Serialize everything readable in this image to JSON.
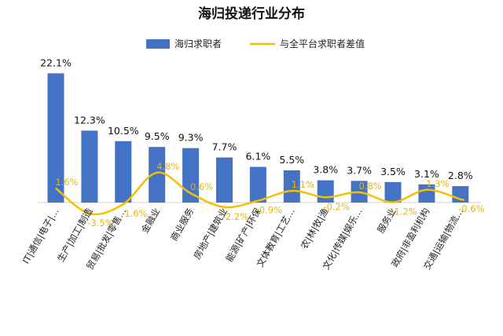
{
  "chart_data": {
    "type": "bar",
    "title": "海归投递行业分布",
    "categories": [
      "IT|通信|电子|…",
      "生产|加工|制造",
      "贸易|批发|零售…",
      "金融业",
      "商业服务",
      "房地产|建筑业",
      "能源|矿产|环保",
      "文体教育|工艺…",
      "农|林|牧|渔",
      "文化|传媒|娱乐…",
      "服务业",
      "政府|非盈利机构",
      "交通|运输|物流…"
    ],
    "series": [
      {
        "name": "海归求职者",
        "type": "bar",
        "values": [
          22.1,
          12.3,
          10.5,
          9.5,
          9.3,
          7.7,
          6.1,
          5.5,
          3.8,
          3.7,
          3.5,
          3.1,
          2.8
        ],
        "labels": [
          "22.1%",
          "12.3%",
          "10.5%",
          "9.5%",
          "9.3%",
          "7.7%",
          "6.1%",
          "5.5%",
          "3.8%",
          "3.7%",
          "3.5%",
          "3.1%",
          "2.8%"
        ],
        "color": "#4472c4"
      },
      {
        "name": "与全平台求职者差值",
        "type": "line",
        "values": [
          1.6,
          -3.5,
          -1.6,
          4.8,
          0.6,
          -2.2,
          -0.9,
          1.1,
          -0.2,
          0.8,
          -1.2,
          1.3,
          -0.6
        ],
        "labels": [
          "1.6%",
          "-3.5%",
          "-1.6%",
          "4.8%",
          "0.6%",
          "-2.2%",
          "-0.9%",
          "1.1%",
          "-0.2%",
          "0.8%",
          "-1.2%",
          "1.3%",
          "-0.6%"
        ],
        "color": "#f5c000"
      }
    ],
    "legend_position": "top-center",
    "grid": false
  }
}
